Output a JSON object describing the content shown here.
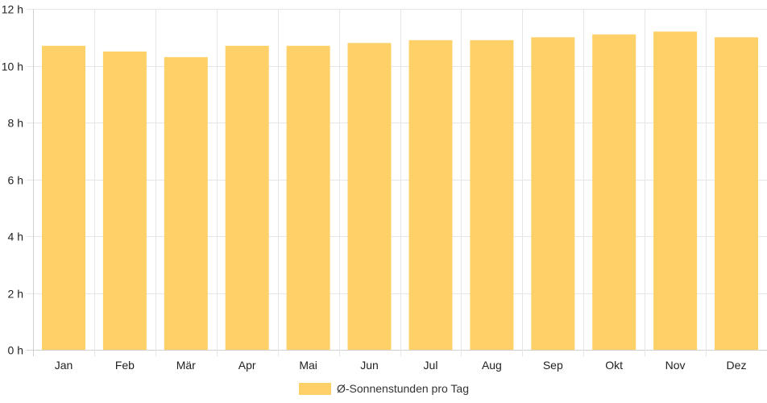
{
  "chart_data": {
    "type": "bar",
    "categories": [
      "Jan",
      "Feb",
      "Mär",
      "Apr",
      "Mai",
      "Jun",
      "Jul",
      "Aug",
      "Sep",
      "Okt",
      "Nov",
      "Dez"
    ],
    "series": [
      {
        "name": "Ø-Sonnenstunden pro Tag",
        "values": [
          10.7,
          10.5,
          10.3,
          10.7,
          10.7,
          10.8,
          10.9,
          10.9,
          11.0,
          11.1,
          11.2,
          11.0
        ],
        "color": "#fdd068"
      }
    ],
    "ylim": [
      0,
      12
    ],
    "y_ticks": [
      0,
      2,
      4,
      6,
      8,
      10,
      12
    ],
    "y_tick_labels": [
      "0 h",
      "2 h",
      "4 h",
      "6 h",
      "8 h",
      "10 h",
      "12 h"
    ],
    "grid": true,
    "legend_position": "bottom",
    "colors": {
      "grid": "#e6e6e6",
      "axis": "#cfcfcf",
      "bar": "#fdd068",
      "text": "#222222"
    }
  }
}
